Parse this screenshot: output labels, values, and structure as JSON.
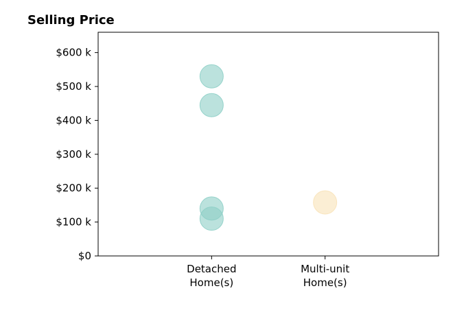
{
  "chart_data": {
    "type": "scatter",
    "title": "Selling Price",
    "xlabel": "",
    "ylabel": "",
    "categories": [
      "Detached\nHome(s)",
      "Multi-unit\nHome(s)"
    ],
    "ylim": [
      0,
      660000
    ],
    "y_ticks": [
      0,
      100000,
      200000,
      300000,
      400000,
      500000,
      600000
    ],
    "y_tick_labels": [
      "$0",
      "$100 k",
      "$200 k",
      "$300 k",
      "$400 k",
      "$500 k",
      "$600 k"
    ],
    "grid": false,
    "legend": "none",
    "series": [
      {
        "category": "Detached\nHome(s)",
        "color": "#8dcfc6",
        "values": [
          530000,
          445000,
          140000,
          110000
        ]
      },
      {
        "category": "Multi-unit\nHome(s)",
        "color": "#f8e2b8",
        "values": [
          158000
        ]
      }
    ]
  }
}
